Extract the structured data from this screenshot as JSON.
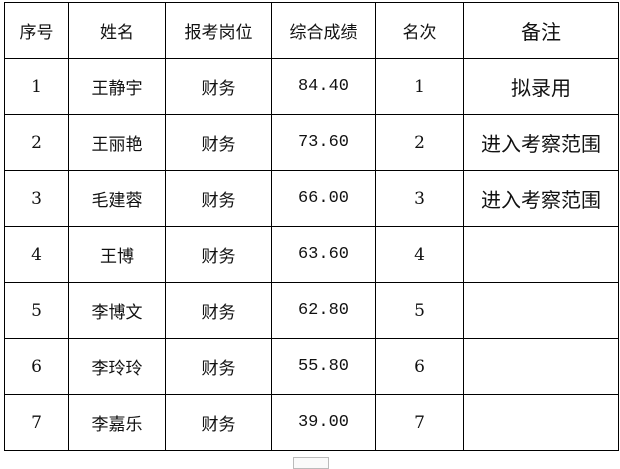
{
  "table": {
    "headers": [
      "序号",
      "姓名",
      "报考岗位",
      "综合成绩",
      "名次",
      "备注"
    ],
    "rows": [
      [
        "1",
        "王静宇",
        "财务",
        "84.40",
        "1",
        "拟录用"
      ],
      [
        "2",
        "王丽艳",
        "财务",
        "73.60",
        "2",
        "进入考察范围"
      ],
      [
        "3",
        "毛建蓉",
        "财务",
        "66.00",
        "3",
        "进入考察范围"
      ],
      [
        "4",
        "王博",
        "财务",
        "63.60",
        "4",
        ""
      ],
      [
        "5",
        "李博文",
        "财务",
        "62.80",
        "5",
        ""
      ],
      [
        "6",
        "李玲玲",
        "财务",
        "55.80",
        "6",
        ""
      ],
      [
        "7",
        "李嘉乐",
        "财务",
        "39.00",
        "7",
        ""
      ]
    ]
  }
}
